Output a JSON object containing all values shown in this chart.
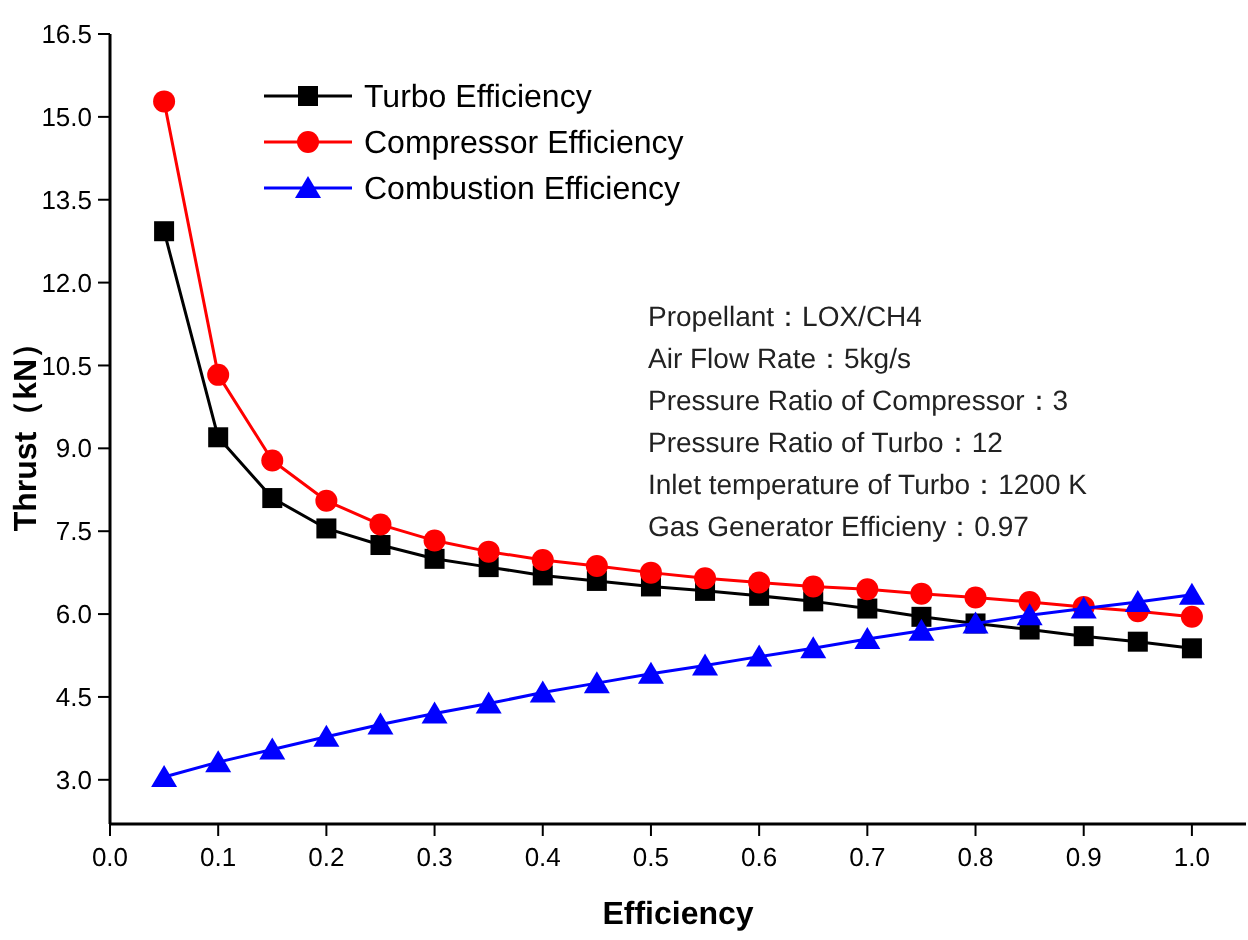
{
  "chart_data": {
    "type": "line",
    "xlabel": "Efficiency",
    "ylabel": "Thrust（kN）",
    "x": [
      0.05,
      0.1,
      0.15,
      0.2,
      0.25,
      0.3,
      0.35,
      0.4,
      0.45,
      0.5,
      0.55,
      0.6,
      0.65,
      0.7,
      0.75,
      0.8,
      0.85,
      0.9,
      0.95,
      1.0
    ],
    "series": [
      {
        "name": "Turbo Efficiency",
        "color": "#000000",
        "marker": "square",
        "values": [
          12.93,
          9.2,
          8.1,
          7.55,
          7.25,
          7.0,
          6.85,
          6.7,
          6.6,
          6.5,
          6.42,
          6.33,
          6.23,
          6.1,
          5.95,
          5.83,
          5.72,
          5.6,
          5.5,
          5.38
        ]
      },
      {
        "name": "Compressor Efficiency",
        "color": "#ff0000",
        "marker": "circle",
        "values": [
          15.28,
          10.33,
          8.78,
          8.05,
          7.62,
          7.33,
          7.13,
          6.98,
          6.87,
          6.75,
          6.65,
          6.57,
          6.5,
          6.45,
          6.37,
          6.3,
          6.22,
          6.13,
          6.05,
          5.95
        ]
      },
      {
        "name": "Combustion Efficiency",
        "color": "#0000ff",
        "marker": "triangle",
        "values": [
          3.05,
          3.32,
          3.55,
          3.78,
          4.0,
          4.2,
          4.38,
          4.58,
          4.75,
          4.92,
          5.07,
          5.23,
          5.38,
          5.55,
          5.7,
          5.83,
          5.98,
          6.1,
          6.22,
          6.35
        ]
      }
    ],
    "xlim": [
      0,
      1.05
    ],
    "xticks": [
      {
        "value": 0,
        "label": "0.0"
      },
      0.1,
      0.2,
      0.3,
      0.4,
      0.5,
      0.6,
      0.7,
      0.8,
      0.9,
      {
        "value": 1,
        "label": "1.0"
      }
    ],
    "ylim": [
      2.2,
      16.5
    ],
    "yticks": [
      {
        "value": 3,
        "label": "3.0"
      },
      4.5,
      {
        "value": 6,
        "label": "6.0"
      },
      7.5,
      {
        "value": 9,
        "label": "9.0"
      },
      10.5,
      {
        "value": 12,
        "label": "12.0"
      },
      13.5,
      {
        "value": 15,
        "label": "15.0"
      },
      16.5
    ],
    "legend": "top left",
    "grid": false,
    "annotations": [
      "Propellant：LOX/CH4",
      "Air Flow Rate：5kg/s",
      "Pressure Ratio of Compressor：3",
      "Pressure Ratio of Turbo：12",
      "Inlet temperature of Turbo：1200 K",
      "Gas Generator Efficieny：0.97"
    ]
  }
}
